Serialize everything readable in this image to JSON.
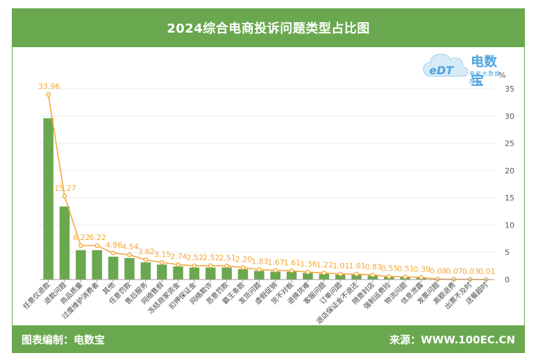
{
  "header": {
    "title": "2024综合电商投诉问题类型占比图"
  },
  "logo": {
    "mark": "eDT",
    "name": "电数宝",
    "tagline": "电商大数据库"
  },
  "footer": {
    "left": "图表编制：电数宝",
    "right": "来源：WWW.100EC.CN"
  },
  "colors": {
    "bar": "#6aa84f",
    "line": "#f5a83a",
    "brand": "#4aa3df"
  },
  "chart_data": {
    "type": "bar",
    "title": "2024综合电商投诉问题类型占比图",
    "unit": "%",
    "ylim": [
      0,
      35
    ],
    "yticks": [
      0,
      5,
      10,
      15,
      20,
      25,
      30,
      35
    ],
    "grid": true,
    "y_axis_side": "right",
    "categories": [
      "任意仅退款",
      "退款问题",
      "商品质量",
      "过度维护消费者",
      "其他",
      "任意罚款",
      "售后服务",
      "网络售假",
      "冻结商家资金",
      "扣押保证金",
      "网络欺诈",
      "恶意罚款",
      "霸王条款",
      "发货问题",
      "虚假促销",
      "货不对板",
      "退换货难",
      "客服问题",
      "订单问题",
      "退店保证金不退还",
      "随意封店",
      "强制运费险",
      "物流问题",
      "信息泄露",
      "发票问题",
      "高额退费",
      "出票不及时",
      "送餐超时"
    ],
    "values": [
      29.6,
      13.4,
      5.4,
      5.4,
      4.2,
      3.95,
      3.15,
      2.75,
      2.4,
      2.2,
      2.2,
      2.2,
      1.9,
      1.6,
      1.45,
      1.45,
      1.2,
      1.05,
      0.88,
      0.88,
      0.72,
      0.48,
      0.45,
      0.34,
      0.07,
      0.06,
      0.03,
      0.01
    ],
    "series": [
      {
        "type": "line",
        "values": [
          33.96,
          15.27,
          6.22,
          6.22,
          4.86,
          4.54,
          3.62,
          3.15,
          2.74,
          2.52,
          2.52,
          2.51,
          2.2,
          1.83,
          1.67,
          1.61,
          1.36,
          1.22,
          1.01,
          1.01,
          0.83,
          0.55,
          0.51,
          0.39,
          0.08,
          0.07,
          0.03,
          0.01
        ],
        "labels": [
          "33.96",
          "15.27",
          "6.22",
          "6.22",
          "4.86",
          "4.54",
          "3.62",
          "3.15",
          "2.74",
          "2.52",
          "2.52",
          "2.51",
          "2.20",
          "1.83",
          "1.67",
          "1.61",
          "1.36",
          "1.22",
          "1.01",
          "1.01",
          "0.83",
          "0.55",
          "0.51",
          "0.39",
          "0.08",
          "0.07",
          "0.03",
          "0.01"
        ]
      }
    ]
  }
}
